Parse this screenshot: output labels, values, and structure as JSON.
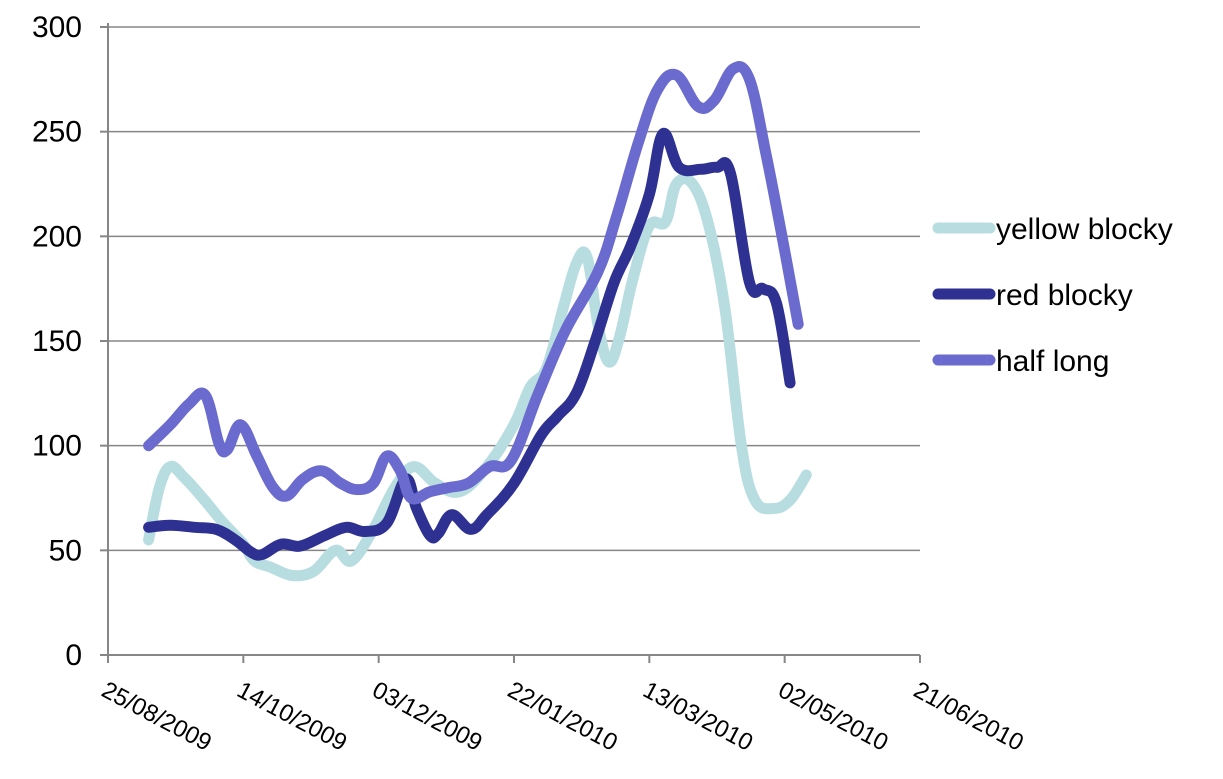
{
  "chart_data": {
    "type": "line",
    "title": "",
    "xlabel": "",
    "ylabel": "",
    "x_axis_type": "date",
    "xlim": [
      "25/08/2009",
      "21/06/2010"
    ],
    "ylim": [
      0,
      300
    ],
    "y_ticks": [
      0,
      50,
      100,
      150,
      200,
      250,
      300
    ],
    "y_tick_labels": [
      "0",
      "50",
      "100",
      "150",
      "200",
      "250",
      "300"
    ],
    "x_ticks": [
      "25/08/2009",
      "14/10/2009",
      "03/12/2009",
      "22/01/2010",
      "13/03/2010",
      "02/05/2010",
      "21/06/2010"
    ],
    "x_tick_labels": [
      "25/08/2009",
      "14/10/2009",
      "03/12/2009",
      "22/01/2010",
      "13/03/2010",
      "02/05/2010",
      "21/06/2010"
    ],
    "grid": "horizontal",
    "legend": "right",
    "series": [
      {
        "name": "yellow blocky",
        "color": "#b7dde0",
        "points": [
          [
            "09/09/2009",
            55
          ],
          [
            "13/09/2009",
            80
          ],
          [
            "17/09/2009",
            90
          ],
          [
            "22/09/2009",
            85
          ],
          [
            "29/09/2009",
            75
          ],
          [
            "06/10/2009",
            64
          ],
          [
            "14/10/2009",
            53
          ],
          [
            "18/10/2009",
            45
          ],
          [
            "24/10/2009",
            42
          ],
          [
            "01/11/2009",
            38
          ],
          [
            "09/11/2009",
            40
          ],
          [
            "17/11/2009",
            50
          ],
          [
            "23/11/2009",
            45
          ],
          [
            "01/12/2009",
            60
          ],
          [
            "09/12/2009",
            80
          ],
          [
            "16/12/2009",
            90
          ],
          [
            "24/12/2009",
            82
          ],
          [
            "02/01/2010",
            78
          ],
          [
            "12/01/2010",
            90
          ],
          [
            "22/01/2010",
            110
          ],
          [
            "28/01/2010",
            128
          ],
          [
            "03/02/2010",
            137
          ],
          [
            "09/02/2010",
            165
          ],
          [
            "14/02/2010",
            187
          ],
          [
            "18/02/2010",
            190
          ],
          [
            "22/02/2010",
            158
          ],
          [
            "26/02/2010",
            140
          ],
          [
            "02/03/2010",
            152
          ],
          [
            "07/03/2010",
            180
          ],
          [
            "13/03/2010",
            205
          ],
          [
            "19/03/2010",
            207
          ],
          [
            "23/03/2010",
            225
          ],
          [
            "29/03/2010",
            225
          ],
          [
            "04/04/2010",
            205
          ],
          [
            "10/04/2010",
            165
          ],
          [
            "16/04/2010",
            100
          ],
          [
            "21/04/2010",
            74
          ],
          [
            "28/04/2010",
            70
          ],
          [
            "04/05/2010",
            74
          ],
          [
            "10/05/2010",
            86
          ]
        ]
      },
      {
        "name": "red blocky",
        "color": "#2e3192",
        "points": [
          [
            "09/09/2009",
            61
          ],
          [
            "17/09/2009",
            62
          ],
          [
            "26/09/2009",
            61
          ],
          [
            "04/10/2009",
            60
          ],
          [
            "11/10/2009",
            55
          ],
          [
            "17/10/2009",
            49
          ],
          [
            "21/10/2009",
            48
          ],
          [
            "28/10/2009",
            53
          ],
          [
            "04/11/2009",
            52
          ],
          [
            "13/11/2009",
            57
          ],
          [
            "21/11/2009",
            61
          ],
          [
            "28/11/2009",
            59
          ],
          [
            "06/12/2009",
            63
          ],
          [
            "13/12/2009",
            84
          ],
          [
            "17/12/2009",
            70
          ],
          [
            "22/12/2009",
            57
          ],
          [
            "25/12/2009",
            58
          ],
          [
            "30/12/2009",
            67
          ],
          [
            "06/01/2010",
            60
          ],
          [
            "12/01/2010",
            67
          ],
          [
            "22/01/2010",
            82
          ],
          [
            "01/02/2010",
            105
          ],
          [
            "07/02/2010",
            114
          ],
          [
            "14/02/2010",
            125
          ],
          [
            "21/02/2010",
            150
          ],
          [
            "28/02/2010",
            178
          ],
          [
            "06/03/2010",
            195
          ],
          [
            "13/03/2010",
            220
          ],
          [
            "18/03/2010",
            249
          ],
          [
            "24/03/2010",
            233
          ],
          [
            "01/04/2010",
            232
          ],
          [
            "07/04/2010",
            233
          ],
          [
            "12/04/2010",
            230
          ],
          [
            "19/04/2010",
            178
          ],
          [
            "24/04/2010",
            175
          ],
          [
            "29/04/2010",
            168
          ],
          [
            "04/05/2010",
            130
          ]
        ]
      },
      {
        "name": "half long",
        "color": "#6b6bcf",
        "points": [
          [
            "09/09/2009",
            100
          ],
          [
            "17/09/2009",
            110
          ],
          [
            "24/09/2009",
            120
          ],
          [
            "30/09/2009",
            124
          ],
          [
            "05/10/2009",
            101
          ],
          [
            "08/10/2009",
            98
          ],
          [
            "13/10/2009",
            110
          ],
          [
            "19/10/2009",
            95
          ],
          [
            "25/10/2009",
            80
          ],
          [
            "30/10/2009",
            76
          ],
          [
            "05/11/2009",
            84
          ],
          [
            "12/11/2009",
            88
          ],
          [
            "19/11/2009",
            82
          ],
          [
            "25/11/2009",
            79
          ],
          [
            "01/12/2009",
            82
          ],
          [
            "06/12/2009",
            95
          ],
          [
            "11/12/2009",
            88
          ],
          [
            "15/12/2009",
            75
          ],
          [
            "22/12/2009",
            78
          ],
          [
            "29/12/2009",
            80
          ],
          [
            "05/01/2010",
            82
          ],
          [
            "13/01/2010",
            90
          ],
          [
            "21/01/2010",
            93
          ],
          [
            "31/01/2010",
            125
          ],
          [
            "10/02/2010",
            155
          ],
          [
            "22/02/2010",
            183
          ],
          [
            "01/03/2010",
            210
          ],
          [
            "09/03/2010",
            245
          ],
          [
            "16/03/2010",
            270
          ],
          [
            "23/03/2010",
            277
          ],
          [
            "31/03/2010",
            262
          ],
          [
            "06/04/2010",
            265
          ],
          [
            "13/04/2010",
            280
          ],
          [
            "19/04/2010",
            275
          ],
          [
            "25/04/2010",
            240
          ],
          [
            "01/05/2010",
            200
          ],
          [
            "07/05/2010",
            158
          ]
        ]
      }
    ]
  }
}
